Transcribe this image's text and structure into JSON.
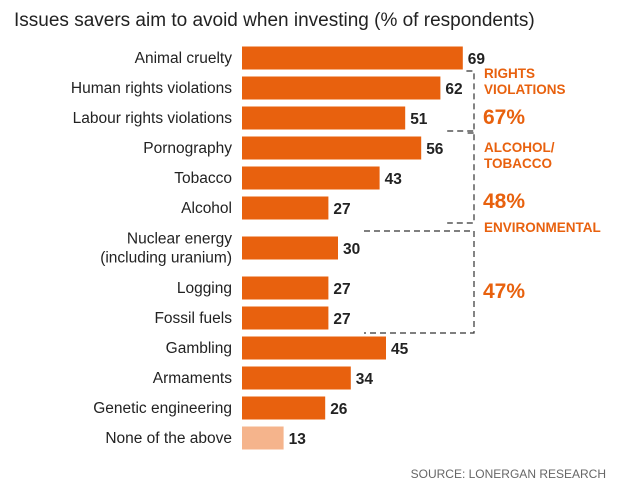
{
  "chart_data": {
    "type": "bar",
    "orientation": "horizontal",
    "title": "Issues savers aim to avoid when investing (% of respondents)",
    "source": "SOURCE: LONERGAN RESEARCH",
    "categories": [
      [
        "Animal cruelty"
      ],
      [
        "Human rights violations"
      ],
      [
        "Labour rights violations"
      ],
      [
        "Pornography"
      ],
      [
        "Tobacco"
      ],
      [
        "Alcohol"
      ],
      [
        "Nuclear energy",
        "(including uranium)"
      ],
      [
        "Logging"
      ],
      [
        "Fossil fuels"
      ],
      [
        "Gambling"
      ],
      [
        "Armaments"
      ],
      [
        "Genetic engineering"
      ],
      [
        "None of the above"
      ]
    ],
    "values": [
      69,
      62,
      51,
      56,
      43,
      27,
      30,
      27,
      27,
      45,
      34,
      26,
      13
    ],
    "highlight_last": true,
    "groups": [
      {
        "name": [
          "RIGHTS",
          "VIOLATIONS"
        ],
        "value": "67%",
        "rows": [
          1,
          2
        ]
      },
      {
        "name": [
          "ALCOHOL/",
          "TOBACCO"
        ],
        "value": "48%",
        "rows": [
          3,
          5
        ]
      },
      {
        "name": [
          "ENVIRONMENTAL"
        ],
        "value": "47%",
        "rows": [
          6,
          8
        ]
      }
    ],
    "colors": {
      "bar": "#e8610e",
      "bar_muted": "#f5b48c",
      "group_text": "#e8610e",
      "bracket": "#333333",
      "muted_value": "#888888"
    }
  }
}
